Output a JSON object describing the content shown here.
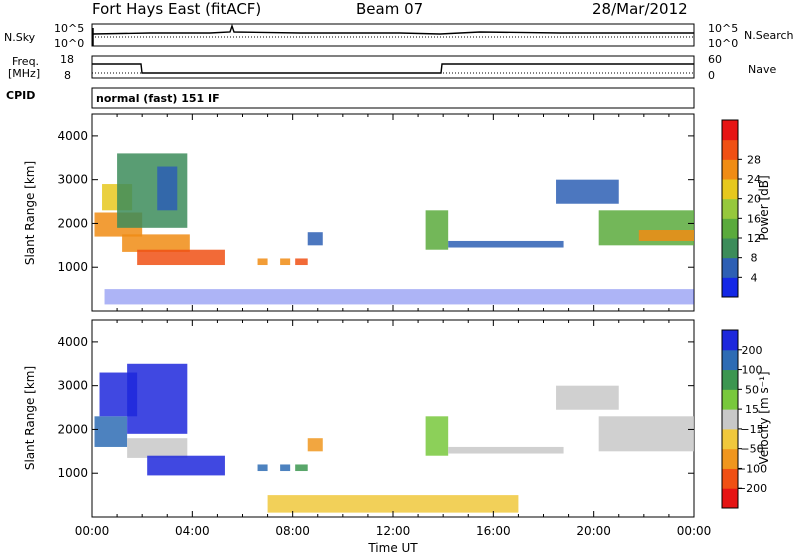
{
  "header": {
    "station": "Fort Hays East (fitACF)",
    "beam": "Beam 07",
    "date": "28/Mar/2012"
  },
  "top_panels": {
    "nsky_label": "N.Sky",
    "nsearch_label": "N.Search",
    "noise_ticks": [
      "10^5",
      "10^0"
    ],
    "freq_label": "Freq.",
    "freq_unit": "[MHz]",
    "freq_ticks": [
      "18",
      "8"
    ],
    "nave_label": "Nave",
    "nave_ticks": [
      "60",
      "0"
    ],
    "cpid_label": "CPID",
    "cpid_text": "normal (fast) 151 IF"
  },
  "colors": {
    "power": [
      "#1428e6",
      "#2d5fb4",
      "#3c8c5a",
      "#5aaa3c",
      "#96c83c",
      "#e6c81e",
      "#f08c14",
      "#f05014",
      "#e61414"
    ],
    "velocity": [
      "#1e28dc",
      "#2e6cb4",
      "#3c9650",
      "#78c83c",
      "#c8c8c8",
      "#f0c83c",
      "#f0961e",
      "#f05014",
      "#e61414"
    ]
  },
  "chart_data": [
    {
      "type": "heatmap",
      "name": "power",
      "ylabel": "Slant Range [km]",
      "xlabel": "",
      "ylim": [
        0,
        4500
      ],
      "yticks": [
        "1000",
        "2000",
        "3000",
        "4000"
      ],
      "colorbar_label": "Power [dB]",
      "colorbar_ticks": [
        "4",
        "8",
        "12",
        "16",
        "20",
        "24",
        "28"
      ],
      "regions": [
        {
          "t0": 0.1,
          "t1": 2.0,
          "r0": 1700,
          "r1": 2250,
          "level": 6
        },
        {
          "t0": 0.4,
          "t1": 1.6,
          "r0": 2300,
          "r1": 2900,
          "level": 5
        },
        {
          "t0": 1.2,
          "t1": 3.9,
          "r0": 1350,
          "r1": 1750,
          "level": 6
        },
        {
          "t0": 1.8,
          "t1": 5.3,
          "r0": 1050,
          "r1": 1400,
          "level": 7
        },
        {
          "t0": 1.0,
          "t1": 3.8,
          "r0": 1900,
          "r1": 3600,
          "level": 2
        },
        {
          "t0": 2.6,
          "t1": 3.4,
          "r0": 2300,
          "r1": 3300,
          "level": 1
        },
        {
          "t0": 6.6,
          "t1": 7.0,
          "r0": 1050,
          "r1": 1200,
          "level": 6
        },
        {
          "t0": 7.5,
          "t1": 7.9,
          "r0": 1050,
          "r1": 1200,
          "level": 6
        },
        {
          "t0": 8.1,
          "t1": 8.6,
          "r0": 1050,
          "r1": 1200,
          "level": 7
        },
        {
          "t0": 8.6,
          "t1": 9.2,
          "r0": 1500,
          "r1": 1800,
          "level": 1
        },
        {
          "t0": 13.3,
          "t1": 14.2,
          "r0": 1400,
          "r1": 2300,
          "level": 3
        },
        {
          "t0": 14.2,
          "t1": 18.8,
          "r0": 1450,
          "r1": 1600,
          "level": 1
        },
        {
          "t0": 18.5,
          "t1": 21.0,
          "r0": 2450,
          "r1": 3000,
          "level": 1
        },
        {
          "t0": 20.2,
          "t1": 24.0,
          "r0": 1500,
          "r1": 2300,
          "level": 3
        },
        {
          "t0": 21.8,
          "t1": 24.0,
          "r0": 1600,
          "r1": 1850,
          "level": 6
        },
        {
          "t0": 0.5,
          "t1": 24.0,
          "r0": 150,
          "r1": 500,
          "level": 0
        }
      ]
    },
    {
      "type": "heatmap",
      "name": "velocity",
      "ylabel": "Slant Range [km]",
      "xlabel": "Time UT",
      "ylim": [
        0,
        4500
      ],
      "yticks": [
        "1000",
        "2000",
        "3000",
        "4000"
      ],
      "xticks": [
        "00:00",
        "04:00",
        "08:00",
        "12:00",
        "16:00",
        "20:00",
        "00:00"
      ],
      "colorbar_label": "Velocity [m s⁻¹]",
      "colorbar_ticks": [
        "200",
        "100",
        "50",
        "15",
        "−15",
        "−50",
        "−100",
        "−200"
      ],
      "regions": [
        {
          "t0": 0.1,
          "t1": 1.4,
          "r0": 1600,
          "r1": 2300,
          "level": 1
        },
        {
          "t0": 0.3,
          "t1": 1.8,
          "r0": 2300,
          "r1": 3300,
          "level": 0
        },
        {
          "t0": 1.4,
          "t1": 3.8,
          "r0": 1350,
          "r1": 1800,
          "level": 4
        },
        {
          "t0": 2.2,
          "t1": 5.3,
          "r0": 950,
          "r1": 1400,
          "level": 0
        },
        {
          "t0": 1.4,
          "t1": 3.8,
          "r0": 1900,
          "r1": 3500,
          "level": 0
        },
        {
          "t0": 6.6,
          "t1": 7.0,
          "r0": 1050,
          "r1": 1200,
          "level": 1
        },
        {
          "t0": 7.5,
          "t1": 7.9,
          "r0": 1050,
          "r1": 1200,
          "level": 1
        },
        {
          "t0": 8.1,
          "t1": 8.6,
          "r0": 1050,
          "r1": 1200,
          "level": 2
        },
        {
          "t0": 8.6,
          "t1": 9.2,
          "r0": 1500,
          "r1": 1800,
          "level": 6
        },
        {
          "t0": 13.3,
          "t1": 14.2,
          "r0": 1400,
          "r1": 2300,
          "level": 3
        },
        {
          "t0": 14.2,
          "t1": 18.8,
          "r0": 1450,
          "r1": 1600,
          "level": 4
        },
        {
          "t0": 18.5,
          "t1": 21.0,
          "r0": 2450,
          "r1": 3000,
          "level": 4
        },
        {
          "t0": 20.2,
          "t1": 24.0,
          "r0": 1500,
          "r1": 2300,
          "level": 4
        },
        {
          "t0": 7.0,
          "t1": 17.0,
          "r0": 100,
          "r1": 500,
          "level": 5
        }
      ]
    }
  ]
}
